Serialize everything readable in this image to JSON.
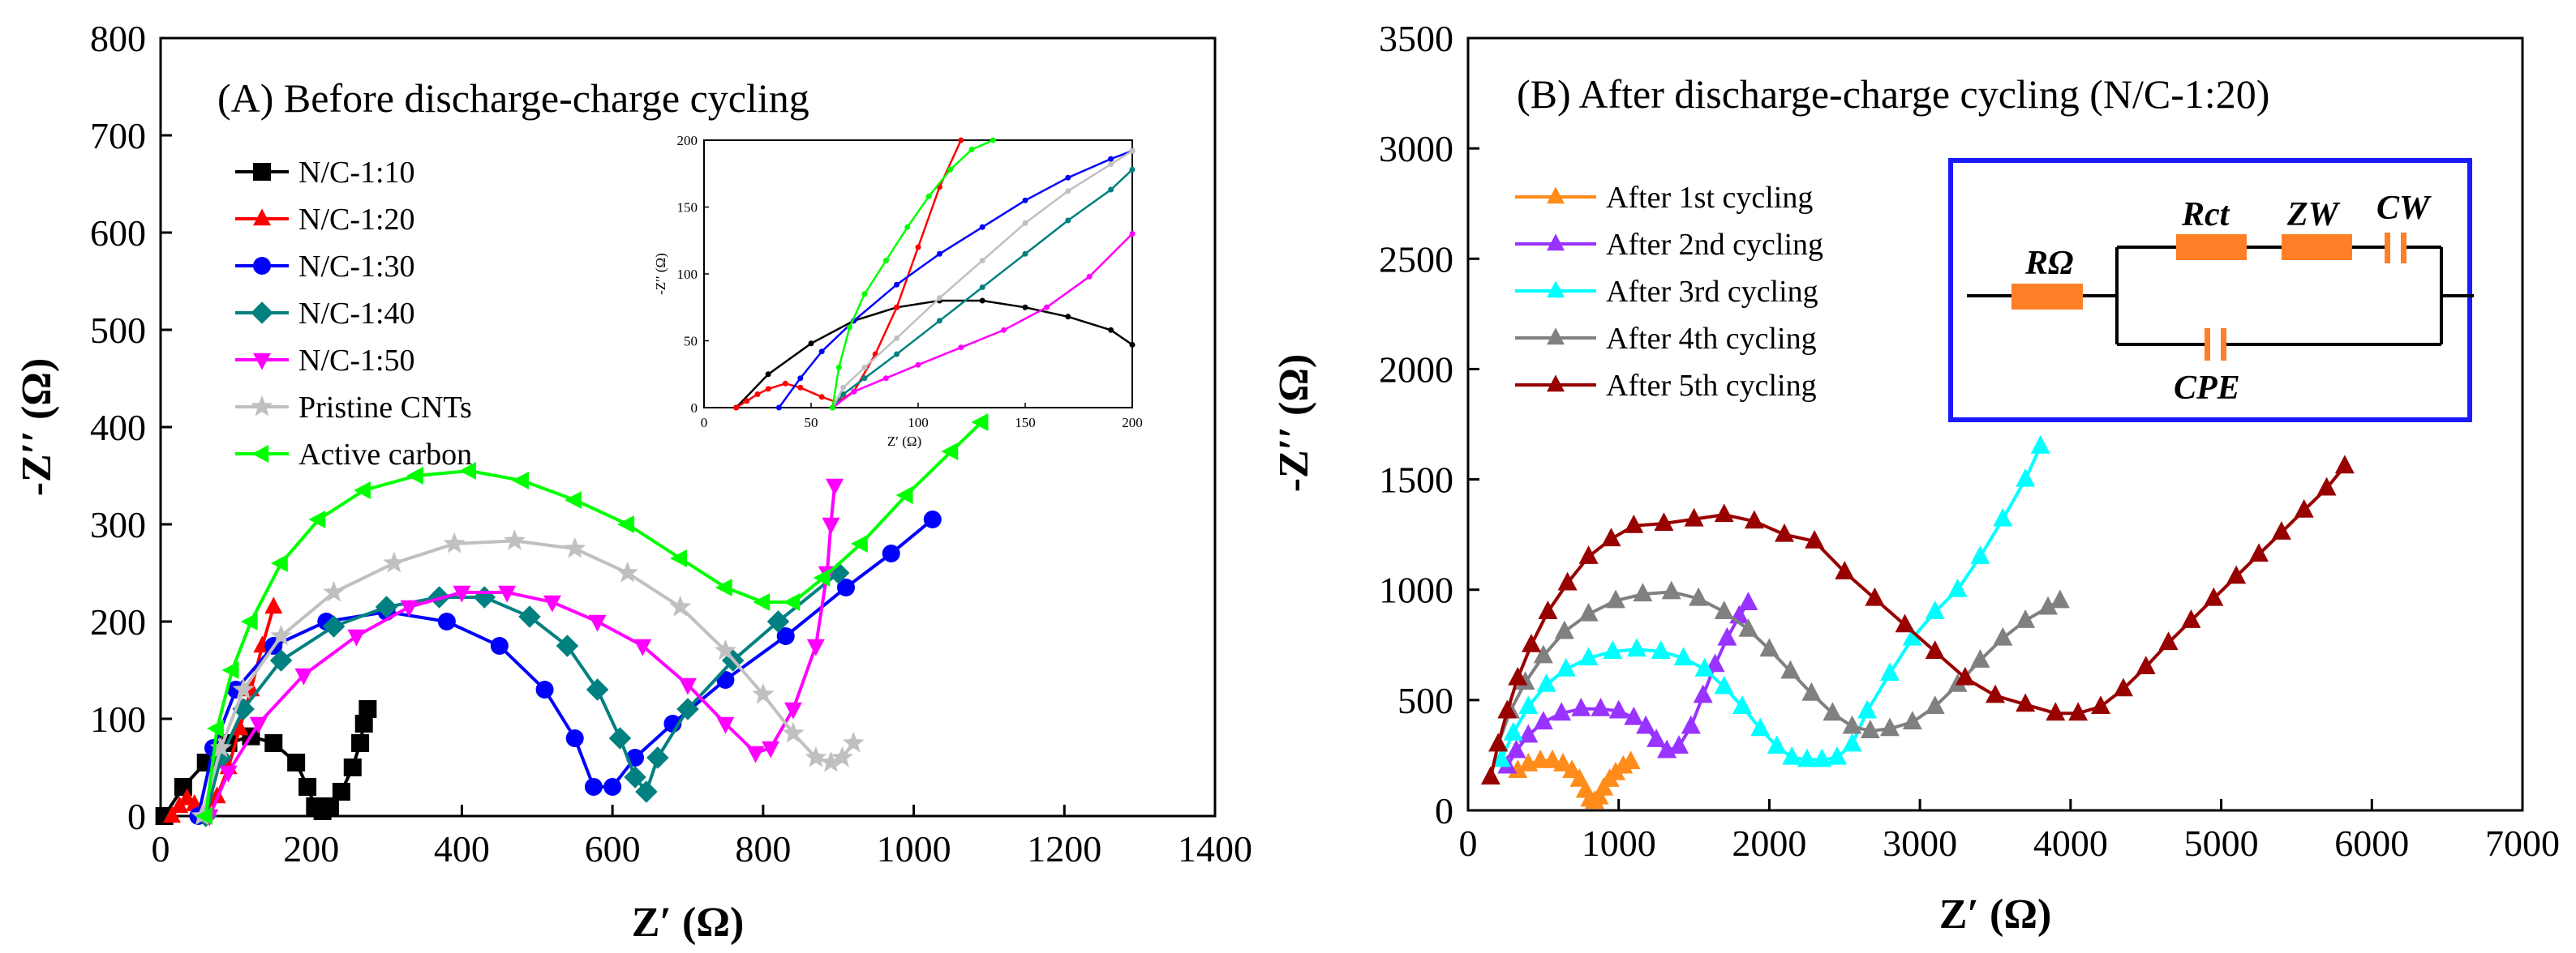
{
  "chart_data": [
    {
      "panel": "A",
      "type": "line",
      "title": "(A)  Before discharge-charge cycling",
      "xlabel": "Z′ (Ω)",
      "ylabel": "-Z′′ (Ω)",
      "xlim": [
        0,
        1400
      ],
      "ylim": [
        0,
        800
      ],
      "xticks": [
        0,
        200,
        400,
        600,
        800,
        1000,
        1200,
        1400
      ],
      "yticks": [
        0,
        100,
        200,
        300,
        400,
        500,
        600,
        700,
        800
      ],
      "legend_position": "top-left",
      "series": [
        {
          "name": "N/C-1:10",
          "color": "#000000",
          "marker": "square",
          "x": [
            5,
            30,
            60,
            90,
            120,
            150,
            180,
            195,
            205,
            215,
            225,
            240,
            255,
            265,
            270,
            275
          ],
          "y": [
            0,
            30,
            55,
            75,
            82,
            75,
            55,
            30,
            10,
            5,
            10,
            25,
            50,
            75,
            95,
            110
          ]
        },
        {
          "name": "N/C-1:20",
          "color": "#ff0000",
          "marker": "triangle-up",
          "x": [
            15,
            25,
            35,
            45,
            60,
            75,
            90,
            105,
            120,
            135,
            150
          ],
          "y": [
            0,
            10,
            18,
            12,
            5,
            20,
            50,
            90,
            130,
            175,
            215
          ]
        },
        {
          "name": "N/C-1:30",
          "color": "#0000ff",
          "marker": "circle",
          "x": [
            50,
            70,
            100,
            150,
            220,
            300,
            380,
            450,
            510,
            550,
            575,
            600,
            630,
            680,
            750,
            830,
            910,
            970,
            1025
          ],
          "y": [
            0,
            70,
            130,
            175,
            200,
            210,
            200,
            175,
            130,
            80,
            30,
            30,
            60,
            95,
            140,
            185,
            235,
            270,
            305
          ]
        },
        {
          "name": "N/C-1:40",
          "color": "#008080",
          "marker": "diamond",
          "x": [
            60,
            80,
            110,
            160,
            230,
            300,
            370,
            430,
            490,
            540,
            580,
            610,
            630,
            645,
            660,
            700,
            760,
            820,
            900
          ],
          "y": [
            0,
            60,
            110,
            160,
            195,
            215,
            225,
            225,
            205,
            175,
            130,
            80,
            40,
            25,
            60,
            110,
            160,
            200,
            250
          ]
        },
        {
          "name": "N/C-1:50",
          "color": "#ff00ff",
          "marker": "triangle-down",
          "x": [
            65,
            90,
            130,
            190,
            260,
            330,
            400,
            460,
            520,
            580,
            640,
            700,
            750,
            790,
            810,
            840,
            870,
            885,
            890,
            895
          ],
          "y": [
            0,
            45,
            95,
            145,
            185,
            215,
            230,
            230,
            220,
            200,
            175,
            135,
            95,
            65,
            70,
            110,
            175,
            250,
            300,
            340
          ]
        },
        {
          "name": "Pristine CNTs",
          "color": "#c0c0c0",
          "marker": "star",
          "x": [
            55,
            80,
            110,
            160,
            230,
            310,
            390,
            470,
            550,
            620,
            690,
            750,
            800,
            840,
            870,
            890,
            905,
            920
          ],
          "y": [
            0,
            70,
            130,
            185,
            230,
            260,
            280,
            283,
            275,
            250,
            215,
            170,
            125,
            85,
            60,
            55,
            60,
            75
          ]
        },
        {
          "name": "Active carbon",
          "color": "#00ff00",
          "marker": "triangle-left",
          "x": [
            60,
            75,
            95,
            120,
            160,
            210,
            270,
            340,
            410,
            480,
            550,
            620,
            690,
            750,
            800,
            840,
            880,
            930,
            990,
            1050,
            1090
          ],
          "y": [
            0,
            90,
            150,
            200,
            260,
            305,
            335,
            350,
            355,
            345,
            325,
            300,
            265,
            235,
            220,
            220,
            245,
            280,
            330,
            375,
            405
          ]
        }
      ],
      "inset": {
        "xlabel": "Z′ (Ω)",
        "ylabel": "-Z′′ (Ω)",
        "xlim": [
          0,
          200
        ],
        "ylim": [
          0,
          200
        ],
        "xticks": [
          0,
          50,
          100,
          150,
          200
        ],
        "yticks": [
          0,
          50,
          100,
          150,
          200
        ],
        "series": [
          {
            "name": "N/C-1:10",
            "color": "#000000",
            "x": [
              15,
              30,
              50,
              70,
              90,
              110,
              130,
              150,
              170,
              190,
              200
            ],
            "y": [
              0,
              25,
              48,
              65,
              75,
              80,
              80,
              75,
              68,
              58,
              47
            ]
          },
          {
            "name": "N/C-1:20",
            "color": "#ff0000",
            "x": [
              15,
              20,
              25,
              30,
              38,
              45,
              55,
              62,
              70,
              80,
              90,
              100,
              110,
              120
            ],
            "y": [
              0,
              5,
              10,
              14,
              18,
              15,
              8,
              4,
              12,
              40,
              75,
              120,
              165,
              200
            ]
          },
          {
            "name": "N/C-1:30",
            "color": "#0000ff",
            "x": [
              35,
              45,
              55,
              70,
              90,
              110,
              130,
              150,
              170,
              190,
              200
            ],
            "y": [
              0,
              22,
              42,
              65,
              92,
              115,
              135,
              155,
              172,
              186,
              192
            ]
          },
          {
            "name": "N/C-1:40",
            "color": "#008080",
            "x": [
              60,
              65,
              75,
              90,
              110,
              130,
              150,
              170,
              190,
              200
            ],
            "y": [
              0,
              10,
              22,
              40,
              65,
              90,
              115,
              140,
              163,
              178
            ]
          },
          {
            "name": "N/C-1:50",
            "color": "#ff00ff",
            "x": [
              60,
              70,
              85,
              100,
              120,
              140,
              160,
              180,
              200
            ],
            "y": [
              0,
              12,
              22,
              32,
              45,
              58,
              75,
              98,
              130
            ]
          },
          {
            "name": "Pristine CNTs",
            "color": "#c0c0c0",
            "x": [
              60,
              65,
              75,
              90,
              110,
              130,
              150,
              170,
              190,
              200
            ],
            "y": [
              0,
              15,
              30,
              52,
              82,
              110,
              138,
              162,
              182,
              192
            ]
          },
          {
            "name": "Active carbon",
            "color": "#00ff00",
            "x": [
              60,
              63,
              68,
              75,
              85,
              95,
              105,
              115,
              125,
              135
            ],
            "y": [
              0,
              30,
              60,
              85,
              110,
              135,
              158,
              178,
              193,
              200
            ]
          }
        ]
      }
    },
    {
      "panel": "B",
      "type": "line",
      "title": "(B)  After discharge-charge cycling (N/C-1:20)",
      "xlabel": "Z′ (Ω)",
      "ylabel": "-Z′′ (Ω)",
      "xlim": [
        0,
        7000
      ],
      "ylim": [
        0,
        3500
      ],
      "xticks": [
        0,
        1000,
        2000,
        3000,
        4000,
        5000,
        6000,
        7000
      ],
      "yticks": [
        0,
        500,
        1000,
        1500,
        2000,
        2500,
        3000,
        3500
      ],
      "legend_position": "top-left",
      "series": [
        {
          "name": "After 1st cycling",
          "color": "#ff8c1a",
          "marker": "triangle-up",
          "x": [
            330,
            400,
            480,
            560,
            630,
            690,
            740,
            780,
            810,
            840,
            870,
            900,
            940,
            980,
            1030,
            1080
          ],
          "y": [
            180,
            210,
            225,
            225,
            210,
            180,
            140,
            90,
            50,
            40,
            60,
            100,
            140,
            170,
            200,
            220
          ]
        },
        {
          "name": "After 2nd cycling",
          "color": "#9933ff",
          "marker": "triangle-up",
          "x": [
            260,
            320,
            400,
            500,
            620,
            750,
            880,
            1000,
            1100,
            1180,
            1250,
            1320,
            1400,
            1480,
            1560,
            1640,
            1720,
            1800,
            1860
          ],
          "y": [
            200,
            270,
            340,
            400,
            440,
            460,
            460,
            450,
            420,
            380,
            320,
            270,
            290,
            380,
            520,
            660,
            780,
            880,
            940
          ]
        },
        {
          "name": "After 3rd cycling",
          "color": "#00ffff",
          "marker": "triangle-up",
          "x": [
            220,
            300,
            400,
            520,
            650,
            800,
            960,
            1120,
            1280,
            1430,
            1570,
            1700,
            1820,
            1940,
            2050,
            2150,
            2250,
            2350,
            2450,
            2550,
            2650,
            2800,
            2950,
            3100,
            3250,
            3400,
            3550,
            3700,
            3800
          ],
          "y": [
            230,
            350,
            470,
            570,
            640,
            690,
            720,
            730,
            720,
            690,
            640,
            560,
            470,
            370,
            290,
            240,
            230,
            230,
            240,
            300,
            450,
            620,
            780,
            900,
            1000,
            1150,
            1320,
            1500,
            1650
          ]
        },
        {
          "name": "After 4th cycling",
          "color": "#808080",
          "marker": "triangle-up",
          "x": [
            200,
            280,
            380,
            500,
            640,
            800,
            980,
            1160,
            1350,
            1530,
            1700,
            1860,
            2000,
            2140,
            2280,
            2420,
            2550,
            2670,
            2800,
            2950,
            3100,
            3250,
            3400,
            3550,
            3700,
            3850,
            3930
          ],
          "y": [
            300,
            450,
            580,
            700,
            810,
            890,
            950,
            980,
            990,
            960,
            900,
            820,
            730,
            630,
            530,
            440,
            380,
            360,
            370,
            400,
            470,
            570,
            680,
            780,
            860,
            920,
            950
          ]
        },
        {
          "name": "After 5th cycling",
          "color": "#990000",
          "marker": "triangle-up",
          "x": [
            150,
            200,
            260,
            330,
            420,
            530,
            660,
            800,
            950,
            1100,
            1300,
            1500,
            1700,
            1900,
            2100,
            2300,
            2500,
            2700,
            2900,
            3100,
            3300,
            3500,
            3700,
            3900,
            4050,
            4200,
            4350,
            4500,
            4650,
            4800,
            4950,
            5100,
            5250,
            5400,
            5550,
            5700,
            5820
          ],
          "y": [
            150,
            300,
            450,
            600,
            750,
            900,
            1030,
            1150,
            1230,
            1290,
            1300,
            1320,
            1340,
            1310,
            1250,
            1220,
            1080,
            960,
            840,
            720,
            600,
            520,
            480,
            440,
            440,
            470,
            550,
            650,
            760,
            860,
            960,
            1060,
            1160,
            1260,
            1360,
            1460,
            1560
          ]
        }
      ],
      "circuit": {
        "labels": {
          "r_omega": "RΩ",
          "r_ct": "Rct",
          "z_w": "ZW",
          "c_w": "CW",
          "cpe": "CPE"
        },
        "element_color": "#ff7f27",
        "frame_color": "#1a1aff"
      }
    }
  ]
}
